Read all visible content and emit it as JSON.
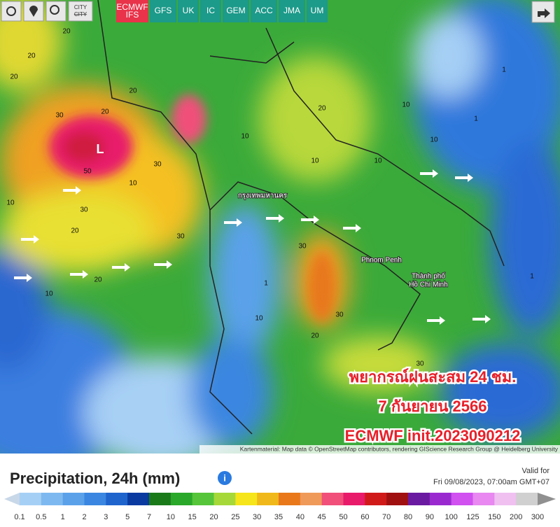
{
  "toolbar": {
    "city": "CITY",
    "models": [
      {
        "name": "ECMWF",
        "sub": "IFS"
      },
      {
        "name": "GFS"
      },
      {
        "name": "UK"
      },
      {
        "name": "IC"
      },
      {
        "name": "GEM"
      },
      {
        "name": "ACC"
      },
      {
        "name": "JMA"
      },
      {
        "name": "UM"
      }
    ]
  },
  "map": {
    "low": "L",
    "places": [
      "กรุงเทพมหานคร",
      "Phnom Penh",
      "Thành phố",
      "Hồ Chí Minh"
    ],
    "contour_labels": [
      20,
      20,
      20,
      30,
      20,
      50,
      30,
      30,
      20,
      30,
      20,
      10,
      10,
      20,
      10,
      10,
      10,
      10,
      20,
      30,
      30,
      10,
      1,
      1,
      1,
      10,
      20,
      30,
      1,
      10
    ],
    "overlay": [
      "พยากรณ์ฝนสะสม 24 ชม.",
      "7 กันยายน 2566",
      "ECMWF init.2023090212"
    ],
    "attribution": "Kartenmaterial: Map data © OpenStreetMap contributors, rendering GIScience Research Group @ Heidelberg University"
  },
  "legend": {
    "title": "Precipitation, 24h (mm)",
    "valid_label": "Valid for",
    "valid_time": "Fri 09/08/2023, 07:00am GMT+07",
    "ticks": [
      0.1,
      0.5,
      1,
      2,
      3,
      5,
      7,
      10,
      15,
      20,
      25,
      30,
      35,
      40,
      45,
      50,
      60,
      70,
      80,
      90,
      100,
      125,
      150,
      200,
      300
    ],
    "colors": [
      "#c8d8e8",
      "#a6cff5",
      "#7db9f0",
      "#5aa1ea",
      "#3a86e0",
      "#1e64cc",
      "#0a3aa0",
      "#1a7a1a",
      "#2aa82a",
      "#56c53a",
      "#a6d83a",
      "#f5e51a",
      "#f0b81a",
      "#e8781a",
      "#f09a5a",
      "#f0507a",
      "#e81a6a",
      "#d01a1a",
      "#a01010",
      "#6a1aa0",
      "#9a2ad0",
      "#d050f0",
      "#e888f0",
      "#f0c0f0",
      "#d0d0d0",
      "#909090"
    ]
  }
}
